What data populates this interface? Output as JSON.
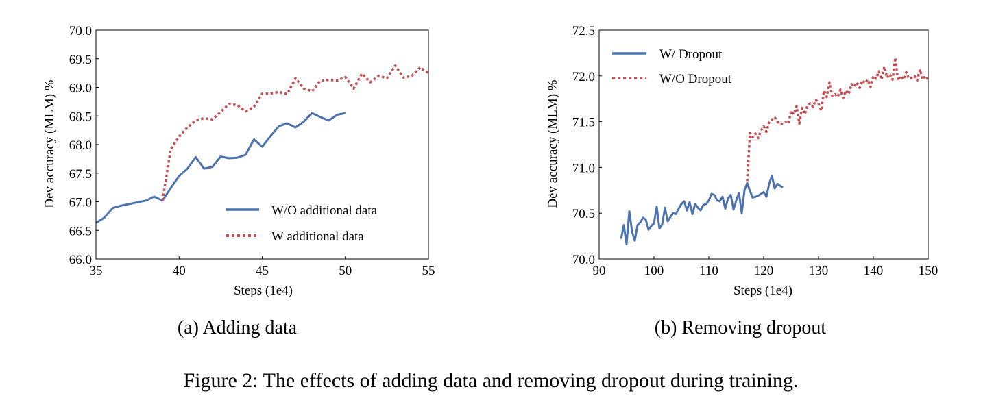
{
  "figure_caption": "Figure 2: The effects of adding data and removing dropout during training.",
  "colors": {
    "blue": "#4C72B0",
    "red": "#C44E52"
  },
  "chart_data": [
    {
      "type": "line",
      "subcaption": "(a) Adding data",
      "xlabel": "Steps (1e4)",
      "ylabel": "Dev accuracy (MLM) %",
      "xlim": [
        35,
        55
      ],
      "ylim": [
        66.0,
        70.0
      ],
      "xticks": [
        "35",
        "40",
        "45",
        "50",
        "55"
      ],
      "yticks": [
        "66.0",
        "66.5",
        "67.0",
        "67.5",
        "68.0",
        "68.5",
        "69.0",
        "69.5",
        "70.0"
      ],
      "grid": false,
      "legend_position": "lower-right",
      "series": [
        {
          "name": "W/O additional data",
          "style": "solid",
          "color": "#4C72B0",
          "x": [
            35,
            35.5,
            36,
            36.5,
            37,
            37.5,
            38,
            38.5,
            39,
            39.5,
            40,
            40.5,
            41,
            41.5,
            42,
            42.5,
            43,
            43.5,
            44,
            44.5,
            45,
            45.5,
            46,
            46.5,
            47,
            47.5,
            48,
            48.5,
            49,
            49.5,
            50
          ],
          "y": [
            66.63,
            66.72,
            66.89,
            66.93,
            66.96,
            66.99,
            67.02,
            67.09,
            67.02,
            67.24,
            67.45,
            67.58,
            67.78,
            67.58,
            67.61,
            67.79,
            67.76,
            67.77,
            67.82,
            68.09,
            67.96,
            68.15,
            68.32,
            68.37,
            68.3,
            68.4,
            68.55,
            68.48,
            68.42,
            68.52,
            68.55
          ]
        },
        {
          "name": "W additional data",
          "style": "dotted",
          "color": "#C44E52",
          "x": [
            39,
            39.5,
            40,
            40.5,
            41,
            41.5,
            42,
            42.5,
            43,
            43.5,
            44,
            44.5,
            45,
            45.5,
            46,
            46.5,
            47,
            47.5,
            48,
            48.5,
            49,
            49.5,
            50,
            50.5,
            51,
            51.5,
            52,
            52.5,
            53,
            53.5,
            54,
            54.5,
            55
          ],
          "y": [
            67.02,
            67.92,
            68.14,
            68.3,
            68.42,
            68.46,
            68.44,
            68.57,
            68.71,
            68.69,
            68.58,
            68.66,
            68.89,
            68.89,
            68.92,
            68.88,
            69.16,
            68.98,
            68.93,
            69.12,
            69.13,
            69.12,
            69.18,
            68.98,
            69.24,
            69.09,
            69.2,
            69.16,
            69.38,
            69.17,
            69.2,
            69.35,
            69.25
          ]
        }
      ]
    },
    {
      "type": "line",
      "subcaption": "(b) Removing dropout",
      "xlabel": "Steps (1e4)",
      "ylabel": "Dev accuracy (MLM) %",
      "xlim": [
        90,
        150
      ],
      "ylim": [
        70.0,
        72.5
      ],
      "xticks": [
        "90",
        "100",
        "110",
        "120",
        "130",
        "140",
        "150"
      ],
      "yticks": [
        "70.0",
        "70.5",
        "71.0",
        "71.5",
        "72.0",
        "72.5"
      ],
      "grid": false,
      "legend_position": "upper-left",
      "series": [
        {
          "name": "W/ Dropout",
          "style": "solid",
          "color": "#4C72B0",
          "x": [
            94,
            94.5,
            95,
            95.5,
            96,
            96.5,
            97,
            97.5,
            98,
            98.5,
            99,
            99.5,
            100,
            100.5,
            101,
            101.5,
            102,
            102.5,
            103,
            103.5,
            104,
            104.5,
            105,
            105.5,
            106,
            106.5,
            107,
            107.5,
            108,
            108.5,
            109,
            109.5,
            110,
            110.5,
            111,
            111.5,
            112,
            112.5,
            113,
            113.5,
            114,
            114.5,
            115,
            115.5,
            116,
            116.5,
            117,
            117.5,
            118,
            118.5,
            119,
            119.5,
            120,
            120.5,
            121,
            121.5,
            122,
            122.5,
            123,
            123.5
          ],
          "y": [
            70.22,
            70.37,
            70.16,
            70.52,
            70.3,
            70.2,
            70.37,
            70.4,
            70.45,
            70.43,
            70.32,
            70.36,
            70.39,
            70.57,
            70.33,
            70.38,
            70.56,
            70.41,
            70.46,
            70.5,
            70.49,
            70.55,
            70.6,
            70.63,
            70.53,
            70.62,
            70.49,
            70.6,
            70.56,
            70.53,
            70.59,
            70.6,
            70.64,
            70.71,
            70.7,
            70.64,
            70.63,
            70.68,
            70.55,
            70.66,
            70.7,
            70.54,
            70.64,
            70.72,
            70.5,
            70.75,
            70.83,
            70.74,
            70.67,
            70.68,
            70.69,
            70.71,
            70.73,
            70.68,
            70.82,
            70.91,
            70.77,
            70.82,
            70.8,
            70.78
          ]
        },
        {
          "name": "W/O Dropout",
          "style": "dotted",
          "color": "#C44E52",
          "x": [
            117,
            117.5,
            118,
            118.5,
            119,
            119.5,
            120,
            120.5,
            121,
            121.5,
            122,
            122.5,
            123,
            123.5,
            124,
            124.5,
            125,
            125.5,
            126,
            126.5,
            127,
            127.5,
            128,
            128.5,
            129,
            129.5,
            130,
            130.5,
            131,
            131.5,
            132,
            132.5,
            133,
            133.5,
            134,
            134.5,
            135,
            135.5,
            136,
            136.5,
            137,
            137.5,
            138,
            138.5,
            139,
            139.5,
            140,
            140.5,
            141,
            141.5,
            142,
            142.5,
            143,
            143.5,
            144,
            144.5,
            145,
            145.5,
            146,
            146.5,
            147,
            147.5,
            148,
            148.5,
            149,
            149.5,
            150
          ],
          "y": [
            70.85,
            71.38,
            71.33,
            71.37,
            71.32,
            71.4,
            71.45,
            71.39,
            71.5,
            71.52,
            71.55,
            71.5,
            71.47,
            71.48,
            71.5,
            71.48,
            71.62,
            71.58,
            71.67,
            71.48,
            71.65,
            71.58,
            71.68,
            71.7,
            71.66,
            71.74,
            71.7,
            71.62,
            71.84,
            71.77,
            71.93,
            71.78,
            71.8,
            71.77,
            71.85,
            71.76,
            71.84,
            71.8,
            71.91,
            71.88,
            71.93,
            71.87,
            71.95,
            71.92,
            71.96,
            71.88,
            72.0,
            71.97,
            72.05,
            71.96,
            72.1,
            71.98,
            72.02,
            71.96,
            72.2,
            71.95,
            72.0,
            71.96,
            72.04,
            71.97,
            71.98,
            72.0,
            71.95,
            72.07,
            71.96,
            72.0,
            71.96
          ]
        }
      ]
    }
  ]
}
